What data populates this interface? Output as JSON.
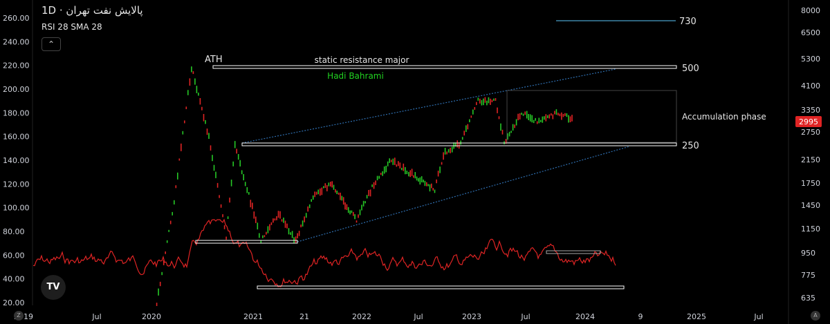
{
  "header": {
    "title": "پالایش نفت تهران · 1D",
    "indicator": "RSI 28 SMA 28",
    "collapse_icon": "chevron-up-icon"
  },
  "chart_data": {
    "type": "line",
    "left_axis_ticks": [
      "260.00",
      "240.00",
      "220.00",
      "200.00",
      "180.00",
      "160.00",
      "140.00",
      "120.00",
      "100.00",
      "80.00",
      "60.00",
      "40.00",
      "20.00"
    ],
    "left_axis_range": [
      20,
      260
    ],
    "right_axis_ticks": [
      "8000",
      "6500",
      "5300",
      "4100",
      "3350",
      "2750",
      "2150",
      "1750",
      "1450",
      "1150",
      "950",
      "775",
      "635"
    ],
    "right_axis_scale": "log",
    "x_axis_ticks": [
      "2019",
      "Jul",
      "2020",
      "21",
      "2021",
      "21",
      "2022",
      "Jul",
      "2023",
      "Jul",
      "2024",
      "9",
      "2025",
      "Jul"
    ],
    "current_price": "2995",
    "price_levels": [
      {
        "label": "730",
        "value": 730
      },
      {
        "label": "500",
        "value": 500
      },
      {
        "label": "250",
        "value": 250
      }
    ],
    "annotations": {
      "ath": "ATH",
      "resistance": "static resistance major",
      "author": "Hadi Bahrami",
      "phase": "Accumulation phase"
    },
    "price_path_approx": [
      {
        "date": "2020-03",
        "price": 20
      },
      {
        "date": "2020-05",
        "price": 105
      },
      {
        "date": "2020-07",
        "price": 218
      },
      {
        "date": "2020-09",
        "price": 160
      },
      {
        "date": "2020-11",
        "price": 75
      },
      {
        "date": "2020-12",
        "price": 152
      },
      {
        "date": "2021-02",
        "price": 100
      },
      {
        "date": "2021-03",
        "price": 72
      },
      {
        "date": "2021-05",
        "price": 95
      },
      {
        "date": "2021-07",
        "price": 72
      },
      {
        "date": "2021-09",
        "price": 110
      },
      {
        "date": "2021-11",
        "price": 120
      },
      {
        "date": "2022-02",
        "price": 90
      },
      {
        "date": "2022-04",
        "price": 120
      },
      {
        "date": "2022-06",
        "price": 140
      },
      {
        "date": "2022-08",
        "price": 130
      },
      {
        "date": "2022-11",
        "price": 115
      },
      {
        "date": "2022-12",
        "price": 145
      },
      {
        "date": "2023-02",
        "price": 155
      },
      {
        "date": "2023-04",
        "price": 190
      },
      {
        "date": "2023-06",
        "price": 190
      },
      {
        "date": "2023-07",
        "price": 155
      },
      {
        "date": "2023-09",
        "price": 180
      },
      {
        "date": "2023-11",
        "price": 172
      },
      {
        "date": "2024-01",
        "price": 180
      },
      {
        "date": "2024-03",
        "price": 175
      }
    ],
    "colors": {
      "up": "#26c826",
      "down": "#e02424",
      "rsi": "#e02424",
      "channel": "#2f6fb0",
      "level_730": "#3d86a8",
      "price_tag": "#e02424",
      "author": "#21d321",
      "box": "#ffffff"
    },
    "grid": false
  },
  "toolbar": {
    "logo": "TV",
    "left_button_icon": "z-icon",
    "right_button_icon": "a-icon",
    "left_button_label": "Z",
    "right_button_label": "A"
  }
}
